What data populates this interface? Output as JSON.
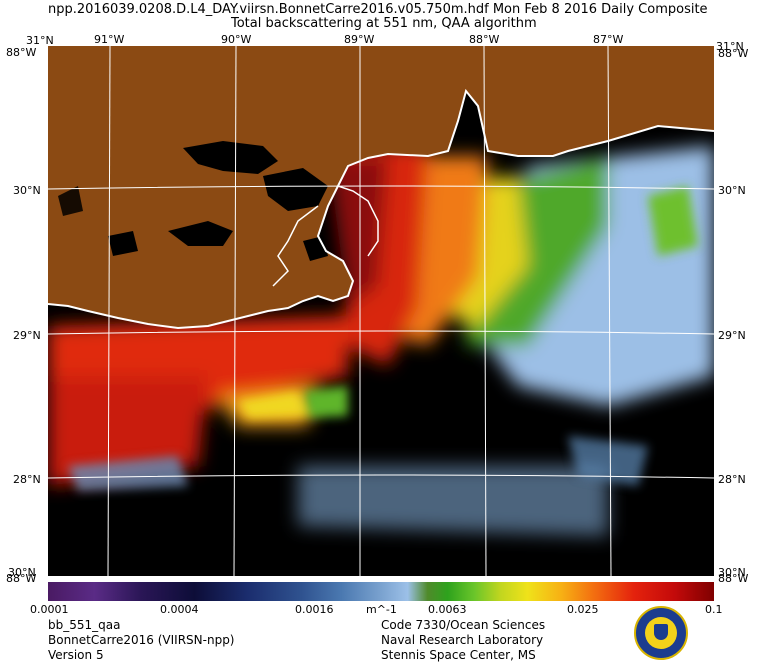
{
  "header": {
    "line1": "npp.2016039.0208.D.L4_DAY.viirsn.BonnetCarre2016.v05.750m.hdf    Mon Feb  8 2016 Daily Composite",
    "line2": "Total backscattering at 551 nm, QAA algorithm"
  },
  "map": {
    "lon_labels": [
      "91°W",
      "90°W",
      "89°W",
      "88°W",
      "87°W"
    ],
    "lat_labels": [
      "30°N",
      "29°N",
      "28°N"
    ],
    "corner_top_left_lat": "31°N",
    "corner_top_left_lon": "88°W",
    "corner_top_right_lat": "31°N",
    "corner_top_right_lon": "88°W",
    "corner_bottom_left_lat": "30°N",
    "corner_bottom_left_lon": "88°W",
    "corner_bottom_right_lat": "30°N",
    "corner_bottom_right_lon": "88°W",
    "colors": {
      "land": "#8b4a13",
      "no_data": "#000000",
      "coast": "#ffffff",
      "grid": "#ffffff"
    }
  },
  "colorbar": {
    "ticks": [
      "0.0001",
      "0.0004",
      "0.0016",
      "0.0063",
      "0.025",
      "0.1"
    ],
    "unit": "m^-1"
  },
  "footer": {
    "left": [
      "bb_551_qaa",
      "BonnetCarre2016 (VIIRSN-npp)",
      "Version 5"
    ],
    "right": [
      "Code 7330/Ocean Sciences",
      "Naval Research Laboratory",
      "Stennis Space Center, MS"
    ],
    "logo_icon": "nrl-seal-icon"
  }
}
